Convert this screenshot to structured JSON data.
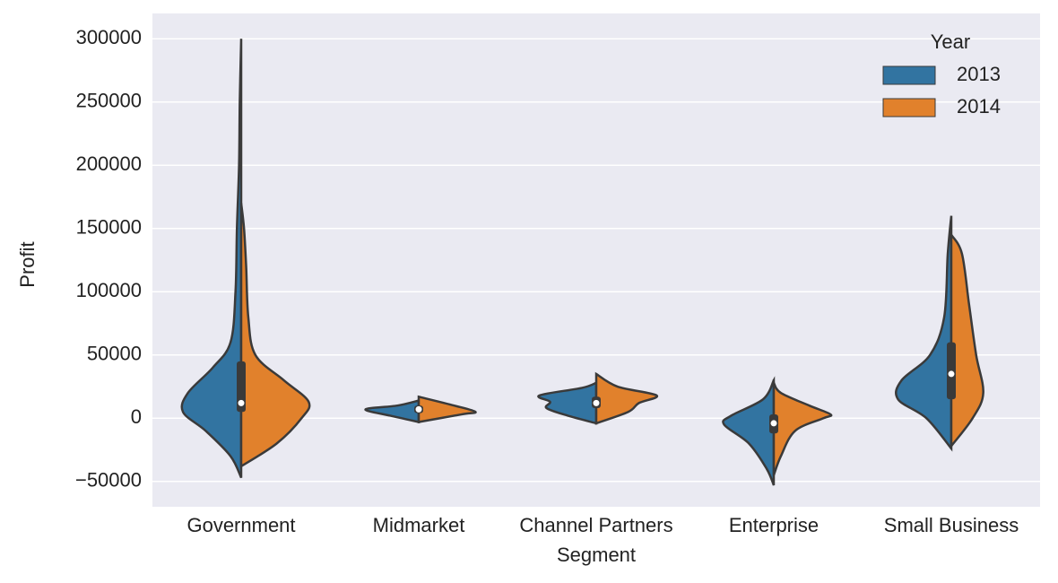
{
  "chart_data": {
    "type": "violin",
    "x_label": "Segment",
    "y_label": "Profit",
    "categories": [
      "Government",
      "Midmarket",
      "Channel Partners",
      "Enterprise",
      "Small Business"
    ],
    "ylim": [
      -70000,
      320000
    ],
    "yticks": [
      {
        "value": -50000,
        "label": "−50000"
      },
      0,
      50000,
      100000,
      150000,
      200000,
      250000,
      300000
    ],
    "grid": true,
    "legend_title": "Year",
    "legend_position": "upper right",
    "series": [
      {
        "name": "2013",
        "color": "#3274a1",
        "violins": [
          [
            [
              -47000,
              0
            ],
            [
              -30000,
              0.15
            ],
            [
              -10000,
              0.5
            ],
            [
              5000,
              0.82
            ],
            [
              20000,
              0.75
            ],
            [
              40000,
              0.4
            ],
            [
              60000,
              0.15
            ],
            [
              100000,
              0.08
            ],
            [
              150000,
              0.06
            ],
            [
              200000,
              0.03
            ],
            [
              250000,
              0.02
            ],
            [
              300000,
              0
            ]
          ],
          [
            [
              -3000,
              0
            ],
            [
              2000,
              0.4
            ],
            [
              7000,
              0.75
            ],
            [
              10000,
              0.3
            ],
            [
              14000,
              0
            ]
          ],
          [
            [
              -4000,
              0
            ],
            [
              2000,
              0.4
            ],
            [
              8000,
              0.7
            ],
            [
              13000,
              0.65
            ],
            [
              18000,
              0.8
            ],
            [
              24000,
              0.2
            ],
            [
              28000,
              0
            ]
          ],
          [
            [
              -53000,
              0
            ],
            [
              -40000,
              0.1
            ],
            [
              -20000,
              0.35
            ],
            [
              -5000,
              0.7
            ],
            [
              2000,
              0.6
            ],
            [
              15000,
              0.15
            ],
            [
              30000,
              0
            ]
          ],
          [
            [
              -24000,
              0
            ],
            [
              0,
              0.35
            ],
            [
              15000,
              0.75
            ],
            [
              30000,
              0.7
            ],
            [
              50000,
              0.3
            ],
            [
              80000,
              0.1
            ],
            [
              130000,
              0.05
            ],
            [
              160000,
              0
            ]
          ]
        ]
      },
      {
        "name": "2014",
        "color": "#e1812c",
        "violins": [
          [
            [
              -38000,
              0
            ],
            [
              -20000,
              0.5
            ],
            [
              0,
              0.85
            ],
            [
              13000,
              0.95
            ],
            [
              30000,
              0.6
            ],
            [
              50000,
              0.2
            ],
            [
              80000,
              0.1
            ],
            [
              120000,
              0.07
            ],
            [
              150000,
              0.04
            ],
            [
              170000,
              0
            ]
          ],
          [
            [
              -3000,
              0
            ],
            [
              3000,
              0.6
            ],
            [
              5000,
              0.8
            ],
            [
              10000,
              0.5
            ],
            [
              17000,
              0
            ]
          ],
          [
            [
              -4000,
              0
            ],
            [
              5000,
              0.45
            ],
            [
              12000,
              0.6
            ],
            [
              18000,
              0.85
            ],
            [
              25000,
              0.3
            ],
            [
              35000,
              0
            ]
          ],
          [
            [
              -45000,
              0
            ],
            [
              -30000,
              0.1
            ],
            [
              -10000,
              0.3
            ],
            [
              0,
              0.7
            ],
            [
              3000,
              0.8
            ],
            [
              10000,
              0.5
            ],
            [
              20000,
              0.1
            ],
            [
              28000,
              0
            ]
          ],
          [
            [
              -22000,
              0
            ],
            [
              0,
              0.3
            ],
            [
              20000,
              0.45
            ],
            [
              50000,
              0.35
            ],
            [
              90000,
              0.25
            ],
            [
              130000,
              0.15
            ],
            [
              145000,
              0
            ]
          ]
        ]
      }
    ],
    "boxes": [
      {
        "whisker_low": -40000,
        "q1": 5000,
        "median": 12000,
        "q3": 45000,
        "whisker_high": 110000
      },
      {
        "whisker_low": -2000,
        "q1": 4000,
        "median": 7000,
        "q3": 10000,
        "whisker_high": 15000
      },
      {
        "whisker_low": 0,
        "q1": 8000,
        "median": 12000,
        "q3": 17000,
        "whisker_high": 25000
      },
      {
        "whisker_low": -35000,
        "q1": -12000,
        "median": -4000,
        "q3": 3000,
        "whisker_high": 18000
      },
      {
        "whisker_low": -20000,
        "q1": 15000,
        "median": 35000,
        "q3": 60000,
        "whisker_high": 100000
      }
    ]
  }
}
